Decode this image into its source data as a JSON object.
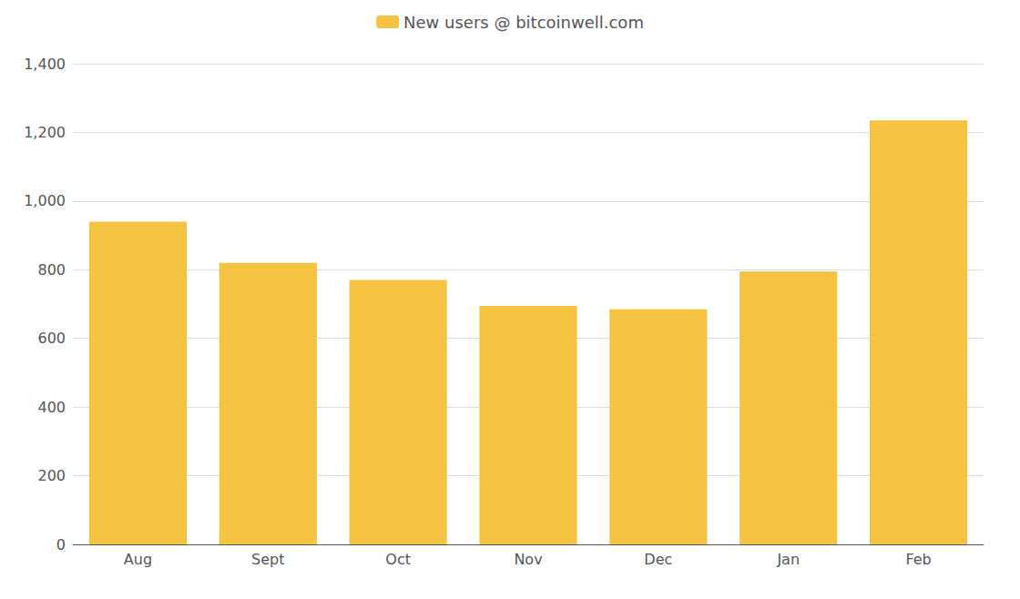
{
  "chart_data": {
    "type": "bar",
    "categories": [
      "Aug",
      "Sept",
      "Oct",
      "Nov",
      "Dec",
      "Jan",
      "Feb"
    ],
    "series": [
      {
        "name": "New users @ bitcoinwell.com",
        "color": "#F5C242",
        "values": [
          940,
          820,
          770,
          695,
          685,
          795,
          1235
        ]
      }
    ],
    "ylim": [
      0,
      1400
    ],
    "yticks": [
      0,
      200,
      400,
      600,
      800,
      1000,
      1200,
      1400
    ],
    "grid": true,
    "legend": "top"
  }
}
